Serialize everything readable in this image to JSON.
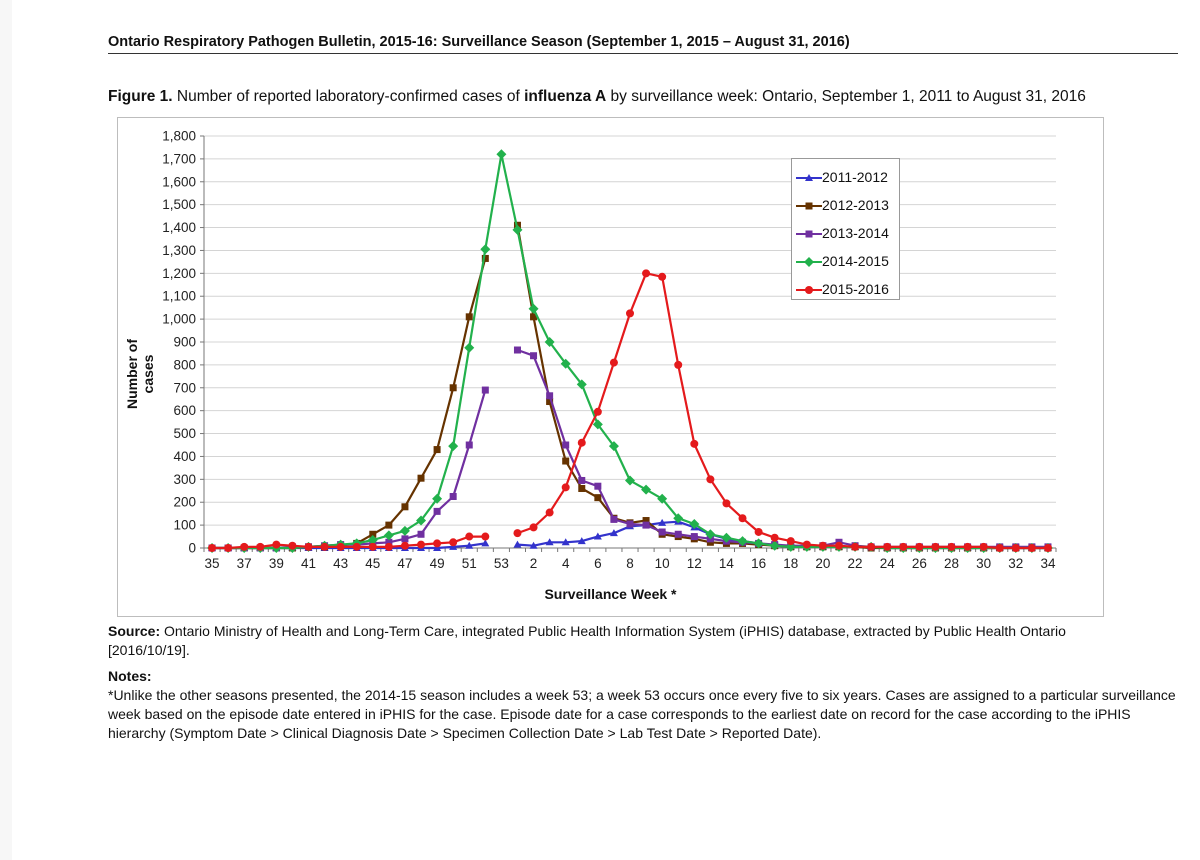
{
  "header": {
    "running_title": "Ontario Respiratory Pathogen Bulletin, 2015-16: Surveillance Season (September 1, 2015 – August 31, 2016)"
  },
  "figure": {
    "label": "Figure 1.",
    "title_pre": " Number of reported laboratory-confirmed cases of ",
    "title_bold": "influenza A",
    "title_post": " by surveillance week:  Ontario, September 1, 2011 to August 31, 2016"
  },
  "chart_data": {
    "type": "line",
    "title": "",
    "xlabel": "Surveillance Week *",
    "ylabel": "Number of cases",
    "ylim": [
      0,
      1800
    ],
    "yticks": [
      0,
      100,
      200,
      300,
      400,
      500,
      600,
      700,
      800,
      900,
      1000,
      1100,
      1200,
      1300,
      1400,
      1500,
      1600,
      1700,
      1800
    ],
    "ytick_labels": [
      "0",
      "100",
      "200",
      "300",
      "400",
      "500",
      "600",
      "700",
      "800",
      "900",
      "1,000",
      "1,100",
      "1,200",
      "1,300",
      "1,400",
      "1,500",
      "1,600",
      "1,700",
      "1,800"
    ],
    "categories": [
      "35",
      "36",
      "37",
      "38",
      "39",
      "40",
      "41",
      "42",
      "43",
      "44",
      "45",
      "46",
      "47",
      "48",
      "49",
      "50",
      "51",
      "52",
      "53",
      "1",
      "2",
      "3",
      "4",
      "5",
      "6",
      "7",
      "8",
      "9",
      "10",
      "11",
      "12",
      "13",
      "14",
      "15",
      "16",
      "17",
      "18",
      "19",
      "20",
      "21",
      "22",
      "23",
      "24",
      "25",
      "26",
      "27",
      "28",
      "29",
      "30",
      "31",
      "32",
      "33",
      "34"
    ],
    "xtick_labels": [
      "35",
      "37",
      "39",
      "41",
      "43",
      "45",
      "47",
      "49",
      "51",
      "53",
      "2",
      "4",
      "6",
      "8",
      "10",
      "12",
      "14",
      "16",
      "18",
      "20",
      "22",
      "24",
      "26",
      "28",
      "30",
      "32",
      "34"
    ],
    "grid": "horizontal",
    "legend_position": "top-right",
    "series": [
      {
        "name": "2011-2012",
        "color": "#3333cc",
        "marker": "triangle",
        "values": [
          0,
          0,
          0,
          0,
          0,
          0,
          0,
          0,
          0,
          0,
          0,
          0,
          0,
          0,
          0,
          5,
          10,
          20,
          null,
          15,
          10,
          25,
          25,
          30,
          50,
          65,
          95,
          100,
          110,
          115,
          90,
          60,
          40,
          30,
          20,
          10,
          5,
          5,
          5,
          5,
          5,
          5,
          0,
          0,
          0,
          0,
          0,
          0,
          0,
          0,
          0,
          0,
          0
        ]
      },
      {
        "name": "2012-2013",
        "color": "#663300",
        "marker": "square",
        "values": [
          0,
          0,
          0,
          0,
          0,
          0,
          5,
          5,
          10,
          20,
          60,
          100,
          180,
          305,
          430,
          700,
          1010,
          1265,
          null,
          1410,
          1010,
          640,
          380,
          260,
          220,
          130,
          110,
          120,
          60,
          50,
          40,
          25,
          20,
          20,
          15,
          10,
          5,
          5,
          5,
          5,
          5,
          0,
          0,
          0,
          0,
          0,
          0,
          0,
          0,
          0,
          0,
          0,
          0
        ]
      },
      {
        "name": "2013-2014",
        "color": "#7030a0",
        "marker": "square",
        "values": [
          0,
          0,
          0,
          0,
          0,
          5,
          5,
          10,
          15,
          15,
          20,
          25,
          40,
          60,
          160,
          225,
          450,
          690,
          null,
          865,
          840,
          665,
          450,
          295,
          270,
          125,
          105,
          100,
          70,
          60,
          50,
          40,
          30,
          25,
          20,
          15,
          10,
          10,
          10,
          25,
          10,
          5,
          5,
          5,
          5,
          5,
          5,
          5,
          5,
          5,
          5,
          5,
          5
        ]
      },
      {
        "name": "2014-2015",
        "color": "#22b14c",
        "marker": "diamond",
        "values": [
          0,
          0,
          0,
          0,
          0,
          0,
          5,
          10,
          15,
          20,
          35,
          55,
          75,
          120,
          215,
          445,
          875,
          1305,
          1720,
          1390,
          1045,
          900,
          805,
          715,
          540,
          445,
          295,
          255,
          215,
          130,
          105,
          60,
          45,
          30,
          20,
          10,
          5,
          5,
          5,
          5,
          5,
          5,
          0,
          0,
          0,
          0,
          0,
          0,
          0,
          0,
          0,
          0,
          0
        ]
      },
      {
        "name": "2015-2016",
        "color": "#e41a1c",
        "marker": "circle",
        "values": [
          0,
          0,
          5,
          5,
          15,
          10,
          5,
          5,
          5,
          5,
          5,
          5,
          10,
          15,
          20,
          25,
          50,
          50,
          null,
          65,
          90,
          155,
          265,
          460,
          595,
          810,
          1025,
          1200,
          1185,
          800,
          455,
          300,
          195,
          130,
          70,
          45,
          30,
          15,
          10,
          10,
          5,
          5,
          5,
          5,
          5,
          5,
          5,
          5,
          5,
          0,
          0,
          0,
          0
        ]
      }
    ]
  },
  "source": {
    "label": "Source:",
    "text": " Ontario Ministry of Health and Long-Term Care, integrated Public Health Information System (iPHIS) database, extracted by Public Health Ontario [2016/10/19]."
  },
  "notes": {
    "label": "Notes:",
    "text": "*Unlike the other seasons presented, the 2014-15 season includes a week 53; a week 53 occurs once every five to six years. Cases are assigned to a particular surveillance week based on the episode date entered in iPHIS for the case. Episode date for a case corresponds to the earliest date on record for the case according to the iPHIS hierarchy (Symptom Date > Clinical Diagnosis Date > Specimen Collection Date > Lab Test Date > Reported Date)."
  }
}
